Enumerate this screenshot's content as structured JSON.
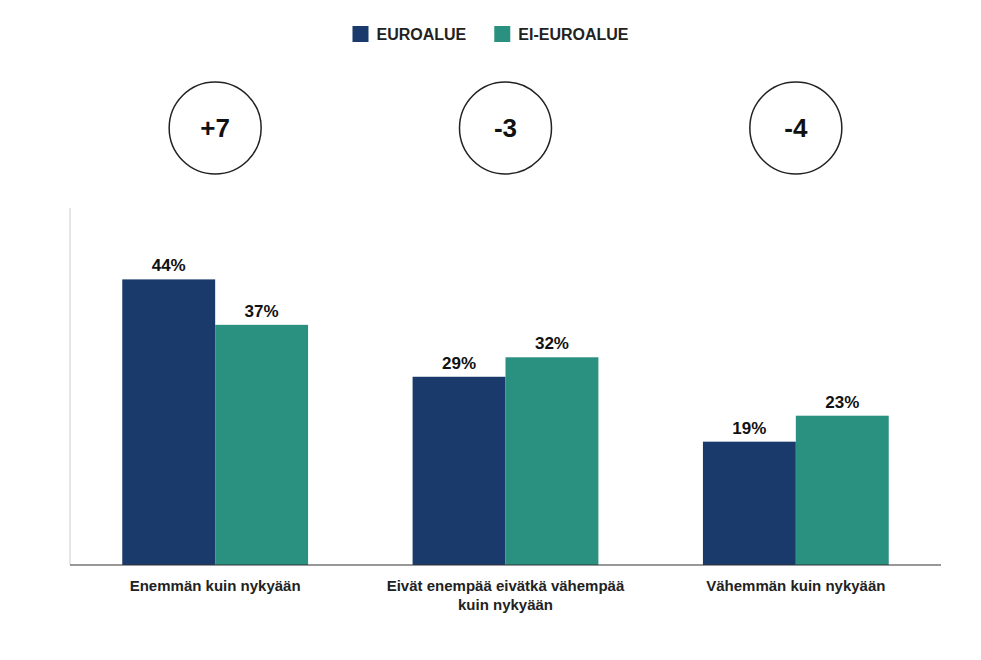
{
  "chart_data": {
    "type": "bar",
    "categories": [
      "Enemmän kuin nykyään",
      "Eivät enempää eivätkä vähempää\nkuin nykyään",
      "Vähemmän kuin nykyään"
    ],
    "series": [
      {
        "name": "EUROALUE",
        "color": "#1a3a6b",
        "values": [
          44,
          29,
          19
        ],
        "value_labels": [
          "44%",
          "29%",
          "19%"
        ]
      },
      {
        "name": "EI-EUROALUE",
        "color": "#2a9080",
        "values": [
          37,
          32,
          23
        ],
        "value_labels": [
          "37%",
          "32%",
          "23%"
        ]
      }
    ],
    "annotations": [
      "+7",
      "-3",
      "-4"
    ],
    "ylim": [
      0,
      55
    ],
    "grid": false,
    "legend": "top",
    "data_labels": true,
    "tick_labels": "x"
  }
}
